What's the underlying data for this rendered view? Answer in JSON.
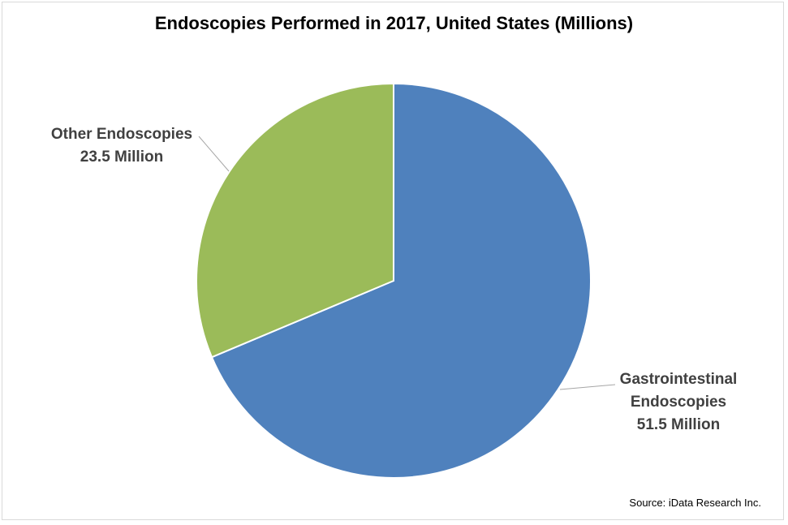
{
  "chart_data": {
    "type": "pie",
    "title": "Endoscopies Performed in 2017, United States (Millions)",
    "categories": [
      "Gastrointestinal Endoscopies",
      "Other Endoscopies"
    ],
    "values": [
      51.5,
      23.5
    ],
    "data_labels": [
      [
        "Gastrointestinal",
        "Endoscopies",
        "51.5 Million"
      ],
      [
        "Other Endoscopies",
        "23.5 Million"
      ]
    ],
    "colors": [
      "#4f81bd",
      "#9bbb59"
    ],
    "legend": "none"
  },
  "source": "Source: iData Research Inc."
}
